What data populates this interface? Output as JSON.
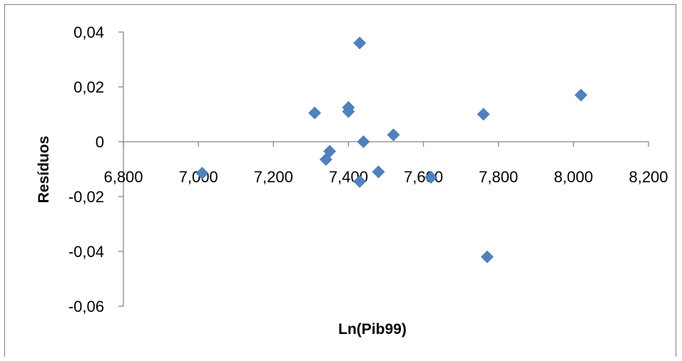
{
  "chart_data": {
    "type": "scatter",
    "title": "",
    "xlabel": "Ln(Pib99)",
    "ylabel": "Resíduos",
    "xlim": [
      6.8,
      8.2
    ],
    "ylim": [
      -0.06,
      0.04
    ],
    "x_ticks": [
      6.8,
      7.0,
      7.2,
      7.4,
      7.6,
      7.8,
      8.0,
      8.2
    ],
    "x_tick_labels": [
      "6,800",
      "7,000",
      "7,200",
      "7,400",
      "7,600",
      "7,800",
      "8,000",
      "8,200"
    ],
    "y_ticks": [
      0.04,
      0.02,
      0,
      -0.02,
      -0.04,
      -0.06
    ],
    "y_tick_labels": [
      "0,04",
      "0,02",
      "0",
      "-0,02",
      "-0,04",
      "-0,06"
    ],
    "grid": false,
    "legend": "none",
    "marker": "diamond",
    "color": "#4F81BD",
    "series": [
      {
        "x": [
          7.01,
          7.31,
          7.34,
          7.35,
          7.4,
          7.4,
          7.43,
          7.43,
          7.44,
          7.48,
          7.52,
          7.62,
          7.76,
          7.77,
          8.02
        ],
        "y": [
          -0.0115,
          0.0105,
          -0.0065,
          -0.0035,
          0.0125,
          0.011,
          0.036,
          -0.0145,
          0.0,
          -0.011,
          0.0025,
          -0.013,
          0.01,
          -0.042,
          0.017
        ]
      }
    ]
  }
}
